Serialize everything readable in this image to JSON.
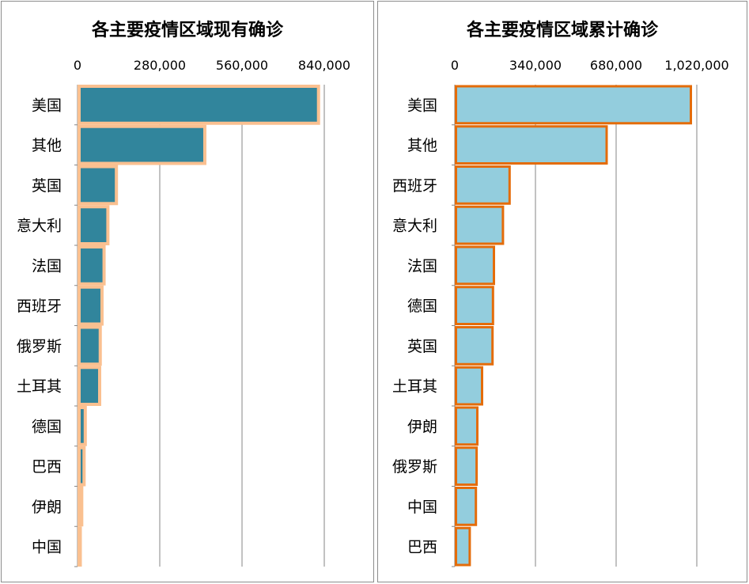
{
  "chart_data": [
    {
      "type": "bar",
      "orientation": "horizontal",
      "title": "各主要疫情区域现有确诊",
      "categories": [
        "美国",
        "其他",
        "英国",
        "意大利",
        "法国",
        "西班牙",
        "俄罗斯",
        "土耳其",
        "德国",
        "巴西",
        "伊朗",
        "中国"
      ],
      "values": [
        815000,
        428000,
        127000,
        98000,
        85000,
        78000,
        72000,
        70000,
        21000,
        17000,
        9000,
        1000
      ],
      "xlim": [
        0,
        840000
      ],
      "ticks": [
        0,
        280000,
        560000,
        840000
      ],
      "tick_labels": [
        "0",
        "280,000",
        "560,000",
        "840,000"
      ],
      "axis_position": "top",
      "grid": true,
      "colors": {
        "fill": "#31859c",
        "outline": "#fac090",
        "grid": "#868686"
      }
    },
    {
      "type": "bar",
      "orientation": "horizontal",
      "title": "各主要疫情区域累计确诊",
      "categories": [
        "美国",
        "其他",
        "西班牙",
        "意大利",
        "法国",
        "德国",
        "英国",
        "土耳其",
        "伊朗",
        "俄罗斯",
        "中国",
        "巴西"
      ],
      "values": [
        990000,
        635000,
        226000,
        198000,
        160000,
        156000,
        154000,
        110000,
        90000,
        87000,
        84000,
        58000
      ],
      "xlim": [
        0,
        1020000
      ],
      "ticks": [
        0,
        340000,
        680000,
        1020000
      ],
      "tick_labels": [
        "0",
        "340,000",
        "680,000",
        "1,020,000"
      ],
      "axis_position": "top",
      "grid": true,
      "colors": {
        "fill": "#93cddd",
        "outline": "#e46c0a",
        "grid": "#868686"
      }
    }
  ]
}
